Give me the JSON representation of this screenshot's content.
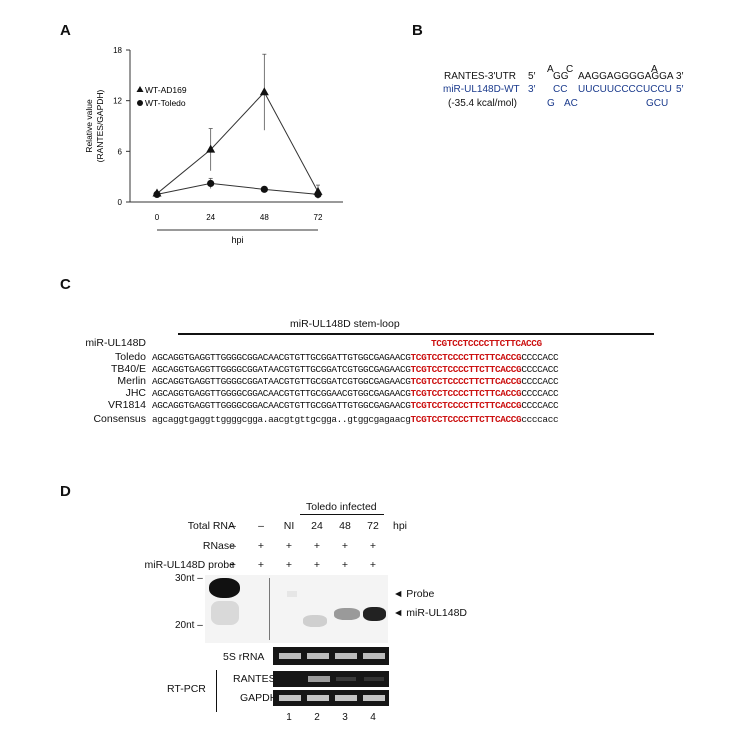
{
  "panels": {
    "a": "A",
    "b": "B",
    "c": "C",
    "d": "D"
  },
  "chart_data": {
    "type": "line",
    "x": [
      0,
      24,
      48,
      72
    ],
    "x_ticks": [
      "0",
      "24",
      "48",
      "72"
    ],
    "y_ticks": [
      "0",
      "6",
      "12",
      "18"
    ],
    "ylim": [
      0,
      18
    ],
    "xlabel": "hpi",
    "ylabel_line1": "Relative value",
    "ylabel_line2": "(RANTES/GAPDH)",
    "series": [
      {
        "name": "WT-AD169",
        "marker": "triangle",
        "values": [
          1.0,
          6.2,
          13.0,
          1.2
        ],
        "errors": [
          0.2,
          2.5,
          4.5,
          0.8
        ]
      },
      {
        "name": "WT-Toledo",
        "marker": "circle",
        "values": [
          0.9,
          2.2,
          1.5,
          0.9
        ],
        "errors": [
          0.2,
          0.6,
          0.2,
          0.3
        ]
      }
    ]
  },
  "panel_b": {
    "top_marks": [
      "A",
      "C",
      "A"
    ],
    "rantes_label": "RANTES-3'UTR",
    "rantes_5": "5′",
    "rantes_seq1": "GG",
    "rantes_seq2": "AAGGAGGGGAGGA",
    "rantes_3": "3′",
    "mir_label": "miR-UL148D-WT",
    "mir_3": "3′",
    "mir_seq1": "CC",
    "mir_seq2": "UUCUUCCCCUCCU",
    "mir_5": "5′",
    "energy": "(-35.4 kcal/mol)",
    "bottom_g": "G",
    "bottom_ac": "AC",
    "bottom_gcu": "GCU"
  },
  "panel_c": {
    "stemloop_label": "miR-UL148D stem-loop",
    "mir_label": "miR-UL148D",
    "mir_seq": "TCGTCCTCCCCTTCTTCACCG",
    "rows": [
      {
        "name": "Toledo",
        "pre": "AGCAGGTGAGGTTGGGGCGGACAACGTGTTGCGGATTGTGGCGAGAACG",
        "mature": "TCGTCCTCCCCTTCTTCACCG",
        "post": "CCCCACC"
      },
      {
        "name": "TB40/E",
        "pre": "AGCAGGTGAGGTTGGGGCGGATAACGTGTTGCGGATCGTGGCGAGAACG",
        "mature": "TCGTCCTCCCCTTCTTCACCG",
        "post": "CCCCACC"
      },
      {
        "name": "Merlin",
        "pre": "AGCAGGTGAGGTTGGGGCGGATAACGTGTTGCGGATCGTGGCGAGAACG",
        "mature": "TCGTCCTCCCCTTCTTCACCG",
        "post": "CCCCACC"
      },
      {
        "name": "JHC",
        "pre": "AGCAGGTGAGGTTGGGGCGGACAACGTGTTGCGGAACGTGGCGAGAACG",
        "mature": "TCGTCCTCCCCTTCTTCACCG",
        "post": "CCCCACC"
      },
      {
        "name": "VR1814",
        "pre": "AGCAGGTGAGGTTGGGGCGGACAACGTGTTGCGGATTGTGGCGAGAACG",
        "mature": "TCGTCCTCCCCTTCTTCACCG",
        "post": "CCCCACC"
      }
    ],
    "consensus_name": "Consensus",
    "consensus_pre": "agcaggtgaggttggggcgga.aacgtgttgcgga..gtggcgagaacg",
    "consensus_mature": "TCGTCCTCCCCTTCTTCACCG",
    "consensus_post": "ccccacc"
  },
  "panel_d": {
    "toledo_infected": "Toledo infected",
    "total_rna": "Total RNA",
    "rnase": "RNase",
    "probe_row": "miR-UL148D probe",
    "hpi": "hpi",
    "total_rna_vals": [
      "–",
      "–",
      "NI",
      "24",
      "48",
      "72"
    ],
    "rnase_vals": [
      "–",
      "+",
      "+",
      "+",
      "+",
      "+"
    ],
    "probe_vals": [
      "+",
      "+",
      "+",
      "+",
      "+",
      "+"
    ],
    "marker_30": "30nt –",
    "marker_20": "20nt –",
    "probe_arrow": "◄ Probe",
    "mir_arrow": "◄ miR-UL148D",
    "rrna": "5S rRNA",
    "rtpcr": "RT-PCR",
    "rantes": "RANTES",
    "gapdh": "GAPDH",
    "lanes": [
      "1",
      "2",
      "3",
      "4"
    ]
  }
}
